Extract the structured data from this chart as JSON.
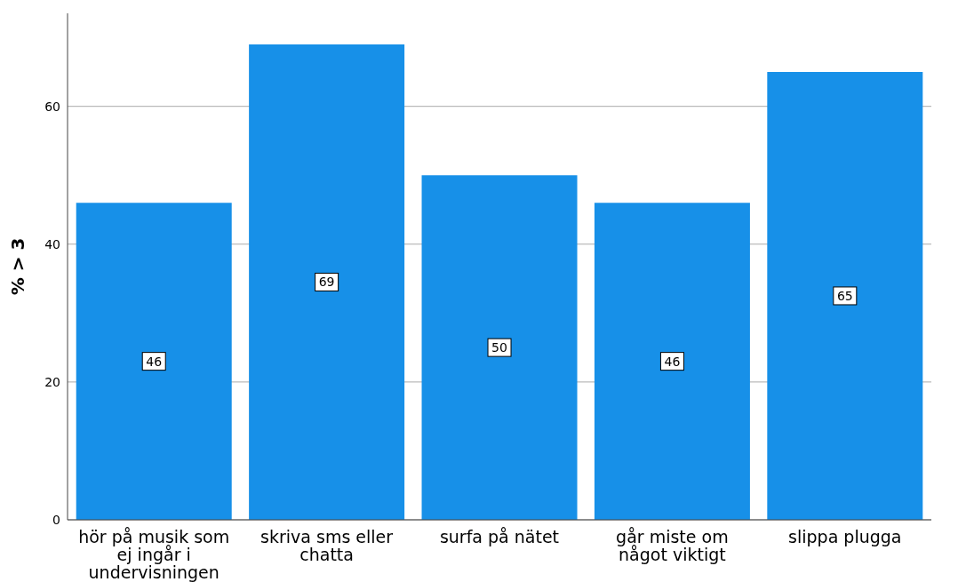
{
  "chart_data": {
    "type": "bar",
    "ylabel": "% > 3",
    "categories": [
      "hör på musik som ej ingår i undervisningen",
      "skriva sms eller chatta",
      "surfa på nätet",
      "går miste om något viktigt",
      "slippa plugga"
    ],
    "values": [
      46,
      69,
      50,
      46,
      65
    ],
    "color": "#1790e8",
    "ylim": [
      0,
      73.5
    ],
    "yticks": [
      0,
      20,
      40,
      60
    ],
    "grid": "y",
    "data_labels": true
  }
}
